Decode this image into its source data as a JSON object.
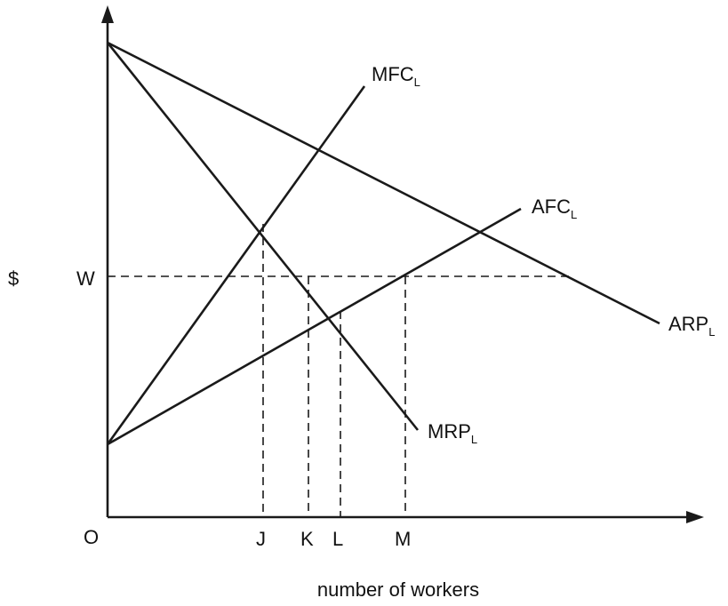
{
  "axes": {
    "y_label": "$",
    "x_label": "number of workers",
    "origin_label": "O",
    "wage_label": "W",
    "x_markers": [
      "J",
      "K",
      "L",
      "M"
    ]
  },
  "curves": {
    "mfc": {
      "main": "MFC",
      "sub": "L"
    },
    "afc": {
      "main": "AFC",
      "sub": "L"
    },
    "arp": {
      "main": "ARP",
      "sub": "L"
    },
    "mrp": {
      "main": "MRP",
      "sub": "L"
    }
  }
}
